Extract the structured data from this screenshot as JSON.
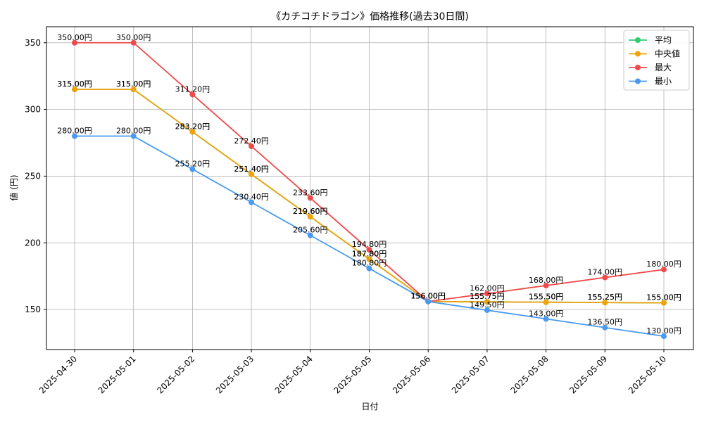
{
  "chart_data": {
    "type": "line",
    "title": "《カチコチドラゴン》価格推移(過去30日間)",
    "xlabel": "日付",
    "ylabel": "値 (円)",
    "categories": [
      "2025-04-30",
      "2025-05-01",
      "2025-05-02",
      "2025-05-03",
      "2025-05-04",
      "2025-05-05",
      "2025-05-06",
      "2025-05-07",
      "2025-05-08",
      "2025-05-09",
      "2025-05-10"
    ],
    "ylim": [
      120,
      362
    ],
    "yticks": [
      150,
      200,
      250,
      300,
      350
    ],
    "grid": true,
    "legend_position": "top-right",
    "series": [
      {
        "name": "平均",
        "color": "#2ecc71",
        "values": [
          315.0,
          315.0,
          283.2,
          251.4,
          219.6,
          187.8,
          156.0,
          155.75,
          155.5,
          155.25,
          155.0
        ],
        "labels": [
          "315.00円",
          "315.00円",
          "283.20円",
          "251.40円",
          "219.60円",
          "187.80円",
          "156.00円",
          "155.75円",
          "155.50円",
          "155.25円",
          "155.00円"
        ]
      },
      {
        "name": "中央値",
        "color": "#f0a30a",
        "values": [
          315.0,
          315.0,
          283.2,
          251.4,
          219.6,
          187.8,
          156.0,
          155.75,
          155.5,
          155.25,
          155.0
        ],
        "labels": [
          "315.00円",
          "315.00円",
          "283.20円",
          "251.40円",
          "219.60円",
          "187.80円",
          "156.00円",
          "155.75円",
          "155.50円",
          "155.25円",
          "155.00円"
        ]
      },
      {
        "name": "最大",
        "color": "#f04a4a",
        "values": [
          350.0,
          350.0,
          311.2,
          272.4,
          233.6,
          194.8,
          156.0,
          162.0,
          168.0,
          174.0,
          180.0
        ],
        "labels": [
          "350.00円",
          "350.00円",
          "311.20円",
          "272.40円",
          "233.60円",
          "194.80円",
          "156.00円",
          "162.00円",
          "168.00円",
          "174.00円",
          "180.00円"
        ]
      },
      {
        "name": "最小",
        "color": "#4a9af0",
        "values": [
          280.0,
          280.0,
          255.2,
          230.4,
          205.6,
          180.8,
          156.0,
          149.5,
          143.0,
          136.5,
          130.0
        ],
        "labels": [
          "280.00円",
          "280.00円",
          "255.20円",
          "230.40円",
          "205.60円",
          "180.80円",
          "156.00円",
          "149.50円",
          "143.00円",
          "136.50円",
          "130.00円"
        ]
      }
    ]
  }
}
